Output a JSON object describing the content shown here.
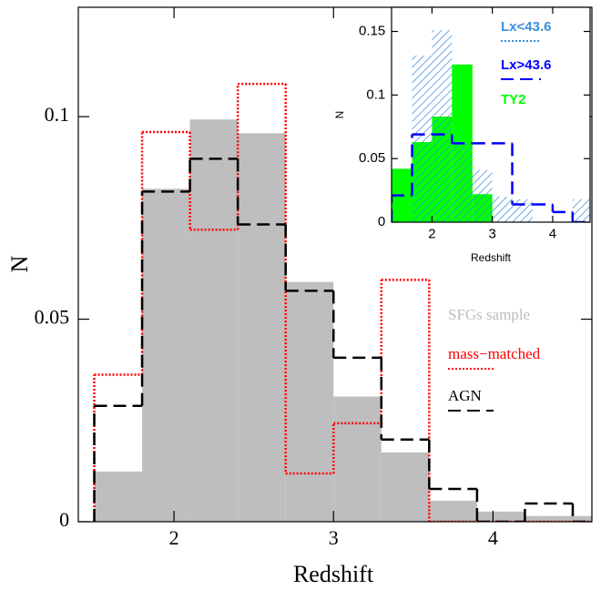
{
  "chart_data": [
    {
      "type": "histogram",
      "xlabel": "Redshift",
      "ylabel": "N",
      "bins": [
        1.5,
        1.8,
        2.1,
        2.4,
        2.7,
        3.0,
        3.3,
        3.6,
        3.9,
        4.2,
        4.5,
        4.8
      ],
      "series": [
        {
          "name": "SFGs sample",
          "color": "#bebebe",
          "style": "fill",
          "values": [
            0.0124,
            0.0822,
            0.0993,
            0.0959,
            0.0592,
            0.0309,
            0.0171,
            0.0052,
            0.0025,
            0.0014,
            0.0014
          ]
        },
        {
          "name": "mass−matched",
          "color": "#ff0000",
          "style": "dotted",
          "values": [
            0.0363,
            0.0962,
            0.0721,
            0.1081,
            0.0119,
            0.0243,
            0.0597,
            0,
            0,
            0,
            0
          ]
        },
        {
          "name": "AGN",
          "color": "#000000",
          "style": "dashed",
          "values": [
            0.0286,
            0.0815,
            0.0896,
            0.0734,
            0.057,
            0.0405,
            0.0203,
            0.0081,
            0,
            0.0045,
            0
          ]
        }
      ],
      "xlim": [
        1.4,
        4.62
      ],
      "ylim": [
        0,
        0.127
      ],
      "xticks": [
        2,
        3,
        4
      ],
      "yticks": [
        0,
        0.05,
        0.1
      ]
    },
    {
      "type": "histogram",
      "xlabel": "Redshift",
      "ylabel": "N",
      "bins": [
        1.33,
        1.67,
        2.0,
        2.33,
        2.67,
        3.0,
        3.33,
        3.67,
        4.0,
        4.33,
        4.67
      ],
      "series": [
        {
          "name": "TY2",
          "color": "#00ff00",
          "style": "fill",
          "values": [
            0.042,
            0.063,
            0.083,
            0.124,
            0.022,
            0,
            0,
            0,
            0,
            0
          ]
        },
        {
          "name": "Lx<43.6",
          "color": "#3d8fdc",
          "style": "hatched",
          "values": [
            0,
            0.131,
            0.151,
            0.062,
            0.041,
            0.02,
            0.018,
            0,
            0,
            0.018
          ]
        },
        {
          "name": "Lx>43.6",
          "color": "#0000ff",
          "style": "dashed",
          "values": [
            0.021,
            0.069,
            0.069,
            0.062,
            0.062,
            0.062,
            0.014,
            0.014,
            0.008,
            0
          ]
        }
      ],
      "xlim": [
        1.33,
        4.62
      ],
      "ylim": [
        0,
        0.169
      ],
      "xticks": [
        2,
        3,
        4
      ],
      "yticks": [
        0,
        0.05,
        0.1,
        0.15
      ]
    }
  ]
}
